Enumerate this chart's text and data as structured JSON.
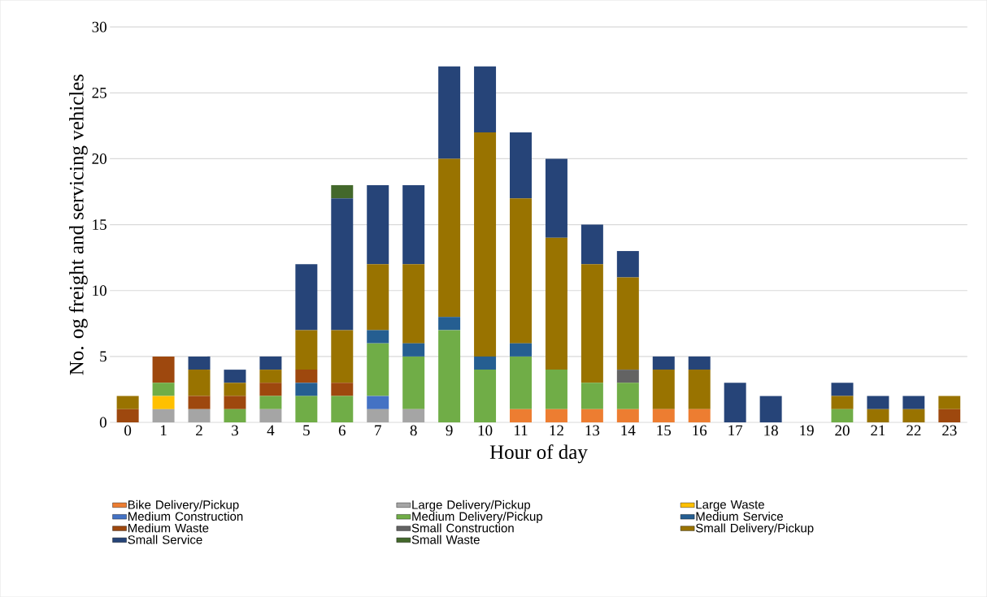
{
  "chart_data": {
    "type": "bar",
    "stacked": true,
    "xlabel": "Hour of day",
    "ylabel": "No. og freight and servicing vehicles",
    "categories": [
      "0",
      "1",
      "2",
      "3",
      "4",
      "5",
      "6",
      "7",
      "8",
      "9",
      "10",
      "11",
      "12",
      "13",
      "14",
      "15",
      "16",
      "17",
      "18",
      "19",
      "20",
      "21",
      "22",
      "23"
    ],
    "ylim": [
      0,
      30
    ],
    "yticks": [
      0,
      5,
      10,
      15,
      20,
      25,
      30
    ],
    "grid": "y",
    "legend": "bottom",
    "series": [
      {
        "name": "Bike Delivery/Pickup",
        "color": "#ed7d31",
        "values": [
          0,
          0,
          0,
          0,
          0,
          0,
          0,
          0,
          0,
          0,
          0,
          1,
          1,
          1,
          1,
          1,
          1,
          0,
          0,
          0,
          0,
          0,
          0,
          0
        ]
      },
      {
        "name": "Large Delivery/Pickup",
        "color": "#a5a5a5",
        "values": [
          0,
          1,
          1,
          0,
          1,
          0,
          0,
          1,
          1,
          0,
          0,
          0,
          0,
          0,
          0,
          0,
          0,
          0,
          0,
          0,
          0,
          0,
          0,
          0
        ]
      },
      {
        "name": "Large Waste",
        "color": "#ffc000",
        "values": [
          0,
          1,
          0,
          0,
          0,
          0,
          0,
          0,
          0,
          0,
          0,
          0,
          0,
          0,
          0,
          0,
          0,
          0,
          0,
          0,
          0,
          0,
          0,
          0
        ]
      },
      {
        "name": "Medium Construction",
        "color": "#4472c4",
        "values": [
          0,
          0,
          0,
          0,
          0,
          0,
          0,
          1,
          0,
          0,
          0,
          0,
          0,
          0,
          0,
          0,
          0,
          0,
          0,
          0,
          0,
          0,
          0,
          0
        ]
      },
      {
        "name": "Medium Delivery/Pickup",
        "color": "#70ad47",
        "values": [
          0,
          1,
          0,
          1,
          1,
          2,
          2,
          4,
          4,
          7,
          4,
          4,
          3,
          2,
          2,
          0,
          0,
          0,
          0,
          0,
          1,
          0,
          0,
          0
        ]
      },
      {
        "name": "Medium Service",
        "color": "#255e91",
        "values": [
          0,
          0,
          0,
          0,
          0,
          1,
          0,
          1,
          1,
          1,
          1,
          1,
          0,
          0,
          0,
          0,
          0,
          0,
          0,
          0,
          0,
          0,
          0,
          0
        ]
      },
      {
        "name": "Medium Waste",
        "color": "#9e480e",
        "values": [
          1,
          2,
          1,
          1,
          1,
          1,
          1,
          0,
          0,
          0,
          0,
          0,
          0,
          0,
          0,
          0,
          0,
          0,
          0,
          0,
          0,
          0,
          0,
          1
        ]
      },
      {
        "name": "Small Construction",
        "color": "#636363",
        "values": [
          0,
          0,
          0,
          0,
          0,
          0,
          0,
          0,
          0,
          0,
          0,
          0,
          0,
          0,
          1,
          0,
          0,
          0,
          0,
          0,
          0,
          0,
          0,
          0
        ]
      },
      {
        "name": "Small Delivery/Pickup",
        "color": "#997300",
        "values": [
          1,
          0,
          2,
          1,
          1,
          3,
          4,
          5,
          6,
          12,
          17,
          11,
          10,
          9,
          7,
          3,
          3,
          0,
          0,
          0,
          1,
          1,
          1,
          1
        ]
      },
      {
        "name": "Small Service",
        "color": "#264478",
        "values": [
          0,
          0,
          1,
          1,
          1,
          5,
          10,
          6,
          6,
          7,
          5,
          5,
          6,
          3,
          2,
          1,
          1,
          3,
          2,
          0,
          1,
          1,
          1,
          0
        ]
      },
      {
        "name": "Small Waste",
        "color": "#43682b",
        "values": [
          0,
          0,
          0,
          0,
          0,
          0,
          1,
          0,
          0,
          0,
          0,
          0,
          0,
          0,
          0,
          0,
          0,
          0,
          0,
          0,
          0,
          0,
          0,
          0
        ]
      }
    ]
  }
}
